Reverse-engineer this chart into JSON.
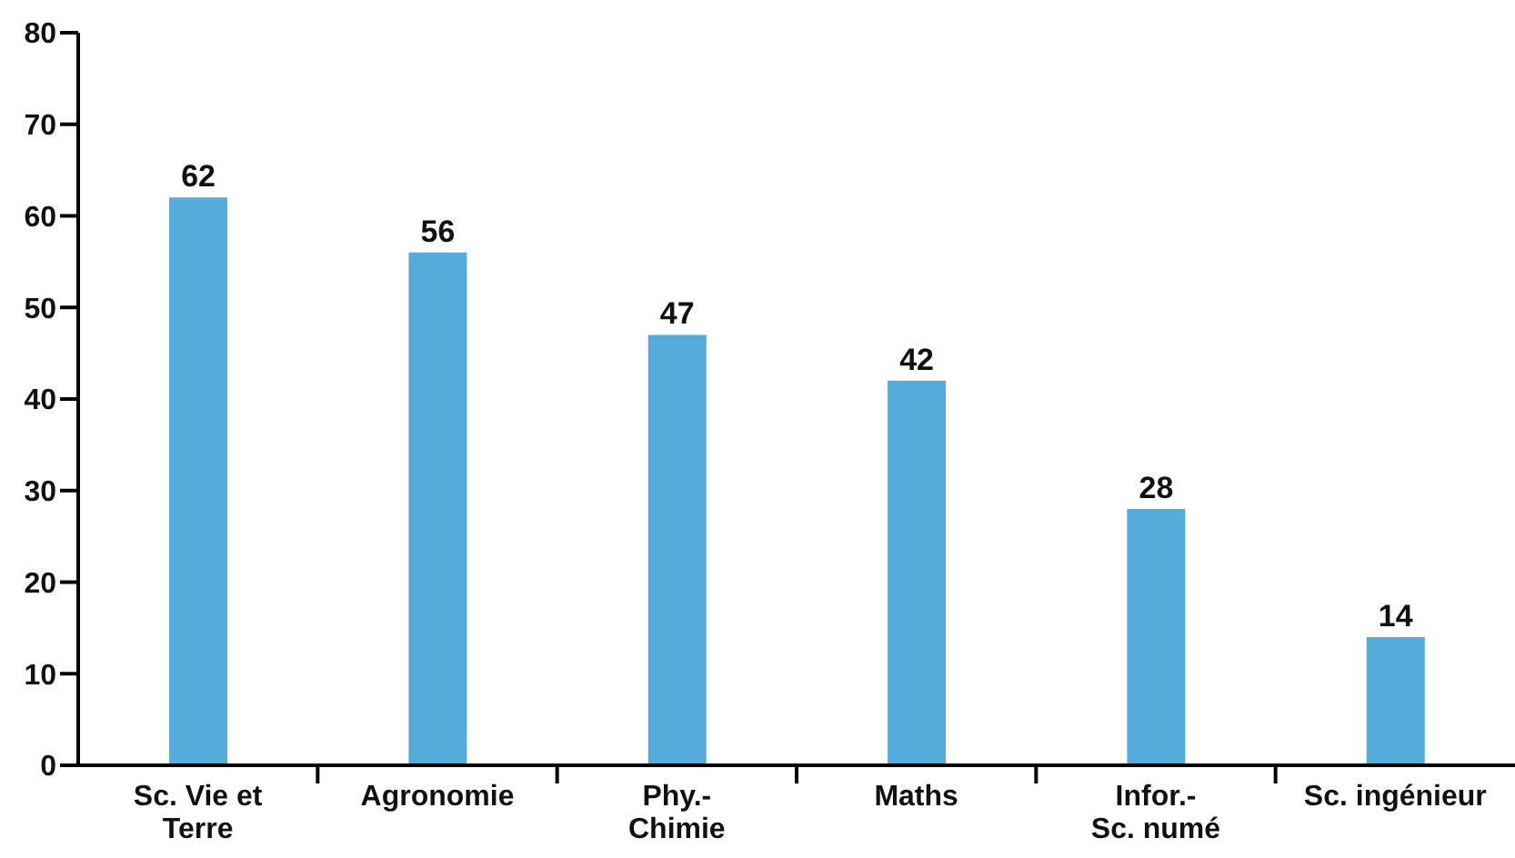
{
  "chart_data": {
    "type": "bar",
    "categories": [
      "Sc. Vie et Terre",
      "Agronomie",
      "Phy.-Chimie",
      "Maths",
      "Infor.-Sc. numé",
      "Sc. ingénieur"
    ],
    "values": [
      62,
      56,
      47,
      42,
      28,
      14
    ],
    "color": "#53acd9",
    "ylim": [
      0,
      80
    ],
    "yticks": [
      0,
      10,
      20,
      30,
      40,
      50,
      60,
      70,
      80
    ],
    "grid": false,
    "data_labels": true,
    "legend": false
  }
}
